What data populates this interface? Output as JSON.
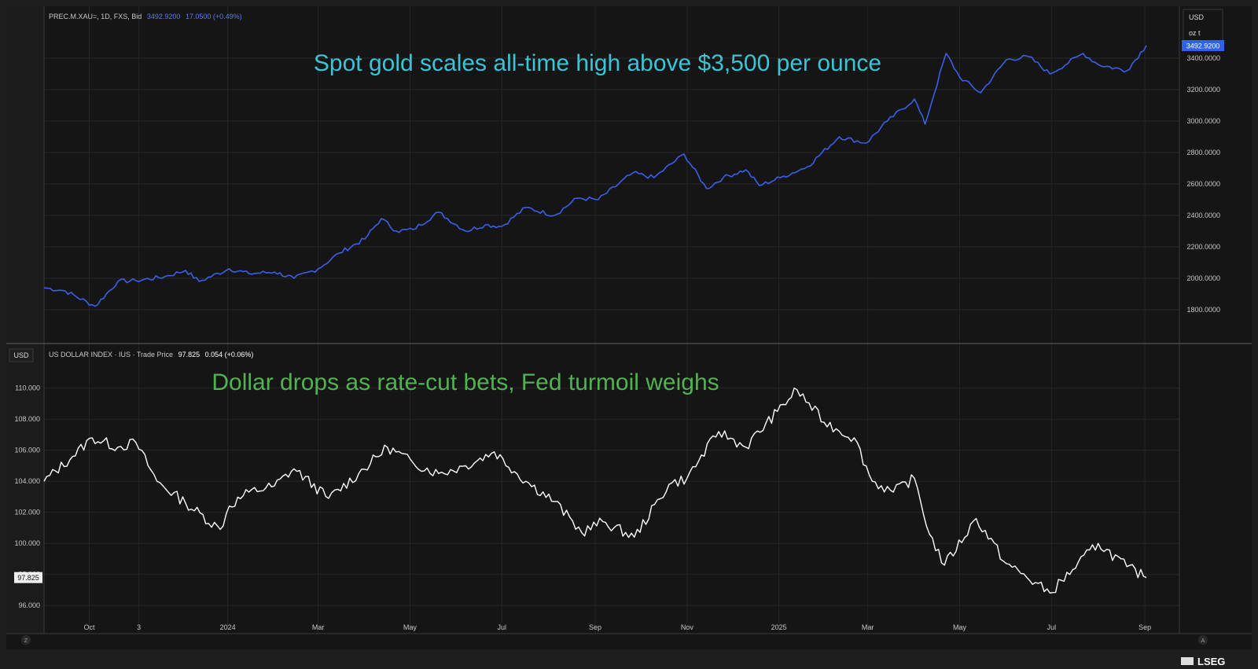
{
  "upper_panel": {
    "header": {
      "symbol": "PREC.M.XAU=, 1D, FXS, Bid",
      "last": "3492.9200",
      "change": "17.0500 (+0.49%)"
    },
    "headline": "Spot gold scales all-time high above $3,500 per ounce",
    "currency": "USD",
    "unit": "oz t",
    "last_price_tag": "3492.9200",
    "y_ticks": [
      "1800.0000",
      "2000.0000",
      "2200.0000",
      "2400.0000",
      "2600.0000",
      "2800.0000",
      "3000.0000",
      "3200.0000",
      "3400.0000"
    ]
  },
  "lower_panel": {
    "header": {
      "symbol": "US DOLLAR INDEX · IUS · Trade Price",
      "last": "97.825",
      "change": "0.054 (+0.06%)"
    },
    "headline": "Dollar drops as rate-cut bets, Fed turmoil weighs",
    "currency": "USD",
    "last_price_tag": "97.825",
    "y_ticks": [
      "96.000",
      "98.000",
      "100.000",
      "102.000",
      "104.000",
      "106.000",
      "108.000",
      "110.000"
    ]
  },
  "x_ticks": [
    "Oct",
    "3",
    "2024",
    "Mar",
    "May",
    "Jul",
    "Sep",
    "Nov",
    "2025",
    "Mar",
    "May",
    "Jul",
    "Sep"
  ],
  "corner_buttons": {
    "left": "Z",
    "right": "A"
  },
  "brand": "LSEG",
  "colors": {
    "gold_line": "#3a5fe8",
    "dollar_line": "#ffffff",
    "gold_headline": "#3bc3d6",
    "dollar_headline": "#4fb34f",
    "background": "#151515"
  },
  "chart_data": [
    {
      "type": "line",
      "title": "Spot gold scales all-time high above $3,500 per ounce",
      "ylabel": "USD oz t",
      "ylim": [
        1620,
        3620
      ],
      "x_range": [
        "2023-09-01",
        "2025-09-02"
      ],
      "series": [
        {
          "name": "PREC.M.XAU=, 1D, FXS, Bid",
          "x": [
            "2023-09-01",
            "2023-09-15",
            "2023-10-05",
            "2023-10-20",
            "2023-11-01",
            "2023-11-20",
            "2023-12-04",
            "2023-12-13",
            "2024-01-02",
            "2024-01-15",
            "2024-02-01",
            "2024-02-14",
            "2024-03-01",
            "2024-03-15",
            "2024-04-01",
            "2024-04-12",
            "2024-04-22",
            "2024-05-03",
            "2024-05-20",
            "2024-06-07",
            "2024-06-20",
            "2024-07-01",
            "2024-07-17",
            "2024-08-05",
            "2024-08-20",
            "2024-09-03",
            "2024-09-26",
            "2024-10-10",
            "2024-10-30",
            "2024-11-14",
            "2024-11-25",
            "2024-12-10",
            "2024-12-19",
            "2025-01-02",
            "2025-01-20",
            "2025-02-10",
            "2025-02-28",
            "2025-03-14",
            "2025-04-01",
            "2025-04-08",
            "2025-04-22",
            "2025-05-01",
            "2025-05-15",
            "2025-06-01",
            "2025-06-16",
            "2025-06-30",
            "2025-07-22",
            "2025-08-01",
            "2025-08-20",
            "2025-09-02"
          ],
          "values": [
            1940,
            1920,
            1822,
            1980,
            1985,
            2010,
            2050,
            1980,
            2060,
            2030,
            2040,
            2000,
            2060,
            2160,
            2250,
            2380,
            2300,
            2310,
            2420,
            2300,
            2340,
            2330,
            2450,
            2400,
            2510,
            2500,
            2670,
            2640,
            2790,
            2570,
            2640,
            2690,
            2590,
            2640,
            2710,
            2900,
            2860,
            3000,
            3140,
            2980,
            3430,
            3280,
            3180,
            3390,
            3410,
            3300,
            3430,
            3360,
            3320,
            3480
          ]
        }
      ]
    },
    {
      "type": "line",
      "title": "Dollar drops as rate-cut bets, Fed turmoil weighs",
      "ylabel": "USD",
      "ylim": [
        95.2,
        111.2
      ],
      "x_range": [
        "2023-09-01",
        "2025-09-02"
      ],
      "series": [
        {
          "name": "US DOLLAR INDEX · IUS · Trade Price",
          "x": [
            "2023-09-01",
            "2023-09-20",
            "2023-10-03",
            "2023-10-20",
            "2023-11-01",
            "2023-11-15",
            "2023-12-04",
            "2023-12-27",
            "2024-01-02",
            "2024-01-15",
            "2024-02-01",
            "2024-02-14",
            "2024-03-08",
            "2024-03-28",
            "2024-04-16",
            "2024-05-03",
            "2024-05-20",
            "2024-06-07",
            "2024-06-26",
            "2024-07-17",
            "2024-08-05",
            "2024-08-23",
            "2024-09-06",
            "2024-09-27",
            "2024-10-20",
            "2024-11-01",
            "2024-11-22",
            "2024-12-10",
            "2024-12-31",
            "2025-01-13",
            "2025-01-31",
            "2025-02-20",
            "2025-03-04",
            "2025-03-18",
            "2025-04-01",
            "2025-04-11",
            "2025-04-21",
            "2025-05-12",
            "2025-06-01",
            "2025-06-30",
            "2025-07-15",
            "2025-08-01",
            "2025-08-20",
            "2025-09-02"
          ],
          "values": [
            104.0,
            105.6,
            106.8,
            106.2,
            106.5,
            104.0,
            102.6,
            100.9,
            102.4,
            103.3,
            103.7,
            104.8,
            102.9,
            104.5,
            106.2,
            105.2,
            104.5,
            105.0,
            105.9,
            104.0,
            102.7,
            100.7,
            101.4,
            100.4,
            103.8,
            104.2,
            107.2,
            106.2,
            108.5,
            109.9,
            107.8,
            106.8,
            104.0,
            103.3,
            104.2,
            100.6,
            98.6,
            101.6,
            98.7,
            96.8,
            98.3,
            100.0,
            98.5,
            97.8
          ]
        }
      ]
    }
  ]
}
